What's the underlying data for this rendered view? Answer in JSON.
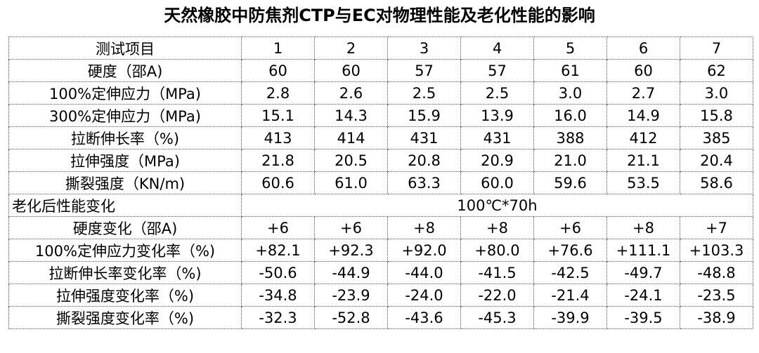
{
  "title": "天然橡胶中防焦剂CTP与EC对物理性能及老化性能的影响",
  "table": {
    "header": [
      "测试项目",
      "1",
      "2",
      "3",
      "4",
      "5",
      "6",
      "7"
    ],
    "rows": [
      [
        "硬度（邵A)",
        "60",
        "60",
        "57",
        "57",
        "61",
        "60",
        "62"
      ],
      [
        "100%定伸应力（MPa)",
        "2.8",
        "2.6",
        "2.5",
        "2.5",
        "3.0",
        "2.7",
        "3.0"
      ],
      [
        "300%定伸应力（MPa)",
        "15.1",
        "14.3",
        "15.9",
        "13.9",
        "16.0",
        "14.9",
        "15.8"
      ],
      [
        "拉断伸长率（%)",
        "413",
        "414",
        "431",
        "431",
        "388",
        "412",
        "385"
      ],
      [
        "拉伸强度（MPa)",
        "21.8",
        "20.5",
        "20.8",
        "20.9",
        "21.0",
        "21.1",
        "20.4"
      ],
      [
        "撕裂强度（KN/m)",
        "60.6",
        "61.0",
        "63.3",
        "60.0",
        "59.6",
        "53.5",
        "58.6"
      ]
    ],
    "section": {
      "label": "老化后性能变化",
      "condition": "100℃*70h"
    },
    "aging_rows": [
      [
        "硬度变化（邵A)",
        "+6",
        "+6",
        "+8",
        "+8",
        "+6",
        "+8",
        "+7"
      ],
      [
        "100%定伸应力变化率（%)",
        "+82.1",
        "+92.3",
        "+92.0",
        "+80.0",
        "+76.6",
        "+111.1",
        "+103.3"
      ],
      [
        "拉断伸长率变化率（%)",
        "-50.6",
        "-44.9",
        "-44.0",
        "-41.5",
        "-42.5",
        "-49.7",
        "-48.8"
      ],
      [
        "拉伸强度变化率（%)",
        "-34.8",
        "-23.9",
        "-24.0",
        "-22.0",
        "-21.4",
        "-24.1",
        "-23.5"
      ],
      [
        "撕裂强度变化率（%)",
        "-32.3",
        "-52.8",
        "-43.6",
        "-45.3",
        "-39.9",
        "-39.5",
        "-38.9"
      ]
    ]
  }
}
